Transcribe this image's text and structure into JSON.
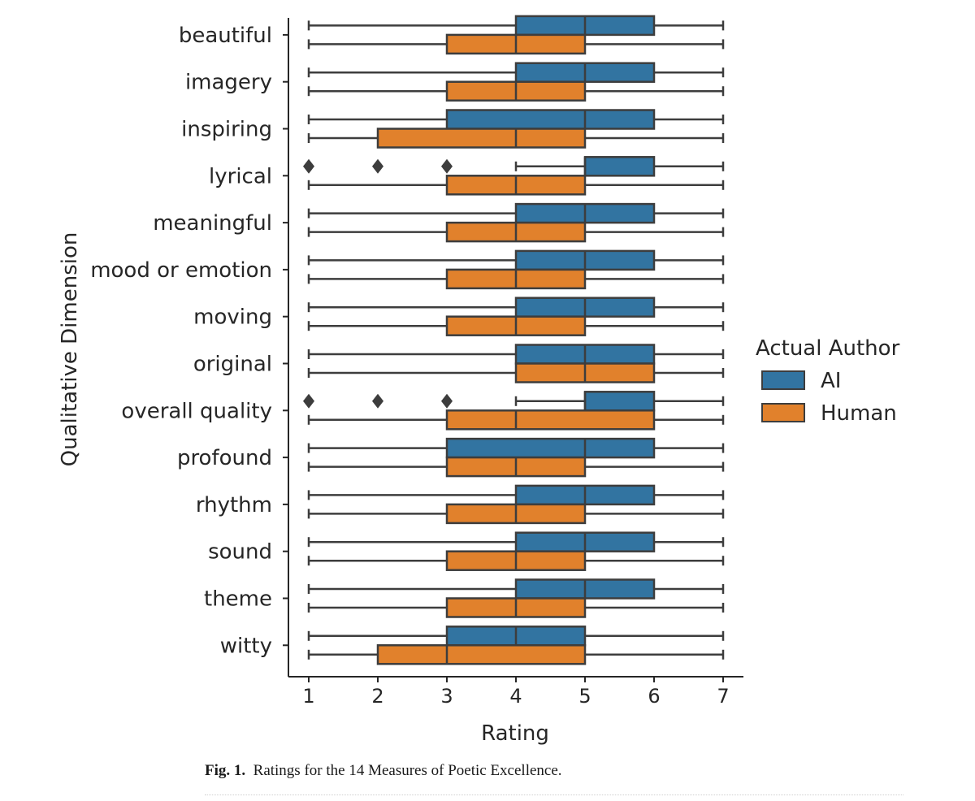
{
  "chart_data": {
    "type": "boxplot",
    "orientation": "horizontal",
    "xlabel": "Rating",
    "ylabel": "Qualitative Dimension",
    "xlim": [
      1,
      7
    ],
    "xticks": [
      1,
      2,
      3,
      4,
      5,
      6,
      7
    ],
    "legend": {
      "title": "Actual Author",
      "position": "right"
    },
    "series": [
      {
        "name": "AI",
        "color": "#3274a1"
      },
      {
        "name": "Human",
        "color": "#e1812c"
      }
    ],
    "categories": [
      {
        "name": "beautiful",
        "AI": {
          "whislo": 1,
          "q1": 4,
          "med": 5,
          "q3": 6,
          "whishi": 7,
          "fliers": []
        },
        "Human": {
          "whislo": 1,
          "q1": 3,
          "med": 4,
          "q3": 5,
          "whishi": 7,
          "fliers": []
        }
      },
      {
        "name": "imagery",
        "AI": {
          "whislo": 1,
          "q1": 4,
          "med": 5,
          "q3": 6,
          "whishi": 7,
          "fliers": []
        },
        "Human": {
          "whislo": 1,
          "q1": 3,
          "med": 4,
          "q3": 5,
          "whishi": 7,
          "fliers": []
        }
      },
      {
        "name": "inspiring",
        "AI": {
          "whislo": 1,
          "q1": 3,
          "med": 5,
          "q3": 6,
          "whishi": 7,
          "fliers": []
        },
        "Human": {
          "whislo": 1,
          "q1": 2,
          "med": 4,
          "q3": 5,
          "whishi": 7,
          "fliers": []
        }
      },
      {
        "name": "lyrical",
        "AI": {
          "whislo": 4,
          "q1": 5,
          "med": 5,
          "q3": 6,
          "whishi": 7,
          "fliers": [
            1,
            2,
            3
          ]
        },
        "Human": {
          "whislo": 1,
          "q1": 3,
          "med": 4,
          "q3": 5,
          "whishi": 7,
          "fliers": []
        }
      },
      {
        "name": "meaningful",
        "AI": {
          "whislo": 1,
          "q1": 4,
          "med": 5,
          "q3": 6,
          "whishi": 7,
          "fliers": []
        },
        "Human": {
          "whislo": 1,
          "q1": 3,
          "med": 4,
          "q3": 5,
          "whishi": 7,
          "fliers": []
        }
      },
      {
        "name": "mood or emotion",
        "AI": {
          "whislo": 1,
          "q1": 4,
          "med": 5,
          "q3": 6,
          "whishi": 7,
          "fliers": []
        },
        "Human": {
          "whislo": 1,
          "q1": 3,
          "med": 4,
          "q3": 5,
          "whishi": 7,
          "fliers": []
        }
      },
      {
        "name": "moving",
        "AI": {
          "whislo": 1,
          "q1": 4,
          "med": 5,
          "q3": 6,
          "whishi": 7,
          "fliers": []
        },
        "Human": {
          "whislo": 1,
          "q1": 3,
          "med": 4,
          "q3": 5,
          "whishi": 7,
          "fliers": []
        }
      },
      {
        "name": "original",
        "AI": {
          "whislo": 1,
          "q1": 4,
          "med": 5,
          "q3": 6,
          "whishi": 7,
          "fliers": []
        },
        "Human": {
          "whislo": 1,
          "q1": 4,
          "med": 5,
          "q3": 6,
          "whishi": 7,
          "fliers": []
        }
      },
      {
        "name": "overall quality",
        "AI": {
          "whislo": 4,
          "q1": 5,
          "med": 5,
          "q3": 6,
          "whishi": 7,
          "fliers": [
            1,
            2,
            3
          ]
        },
        "Human": {
          "whislo": 1,
          "q1": 3,
          "med": 4,
          "q3": 6,
          "whishi": 7,
          "fliers": []
        }
      },
      {
        "name": "profound",
        "AI": {
          "whislo": 1,
          "q1": 3,
          "med": 5,
          "q3": 6,
          "whishi": 7,
          "fliers": []
        },
        "Human": {
          "whislo": 1,
          "q1": 3,
          "med": 4,
          "q3": 5,
          "whishi": 7,
          "fliers": []
        }
      },
      {
        "name": "rhythm",
        "AI": {
          "whislo": 1,
          "q1": 4,
          "med": 5,
          "q3": 6,
          "whishi": 7,
          "fliers": []
        },
        "Human": {
          "whislo": 1,
          "q1": 3,
          "med": 4,
          "q3": 5,
          "whishi": 7,
          "fliers": []
        }
      },
      {
        "name": "sound",
        "AI": {
          "whislo": 1,
          "q1": 4,
          "med": 5,
          "q3": 6,
          "whishi": 7,
          "fliers": []
        },
        "Human": {
          "whislo": 1,
          "q1": 3,
          "med": 4,
          "q3": 5,
          "whishi": 7,
          "fliers": []
        }
      },
      {
        "name": "theme",
        "AI": {
          "whislo": 1,
          "q1": 4,
          "med": 5,
          "q3": 6,
          "whishi": 7,
          "fliers": []
        },
        "Human": {
          "whislo": 1,
          "q1": 3,
          "med": 4,
          "q3": 5,
          "whishi": 7,
          "fliers": []
        }
      },
      {
        "name": "witty",
        "AI": {
          "whislo": 1,
          "q1": 3,
          "med": 4,
          "q3": 5,
          "whishi": 7,
          "fliers": []
        },
        "Human": {
          "whislo": 1,
          "q1": 2,
          "med": 3,
          "q3": 5,
          "whishi": 7,
          "fliers": []
        }
      }
    ]
  },
  "caption": {
    "label": "Fig. 1",
    "text": "Ratings for the 14 Measures of Poetic Excellence."
  }
}
